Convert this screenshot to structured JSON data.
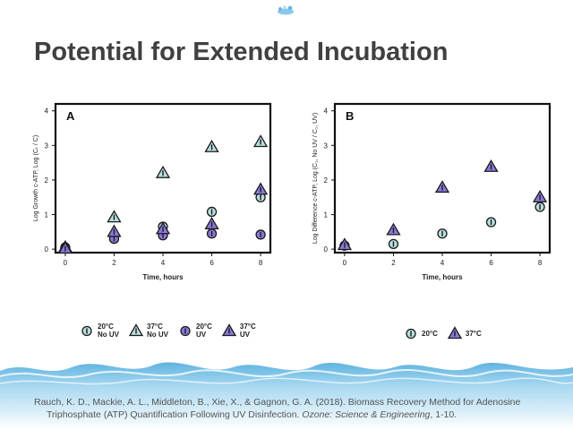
{
  "slide": {
    "title": "Potential for Extended Incubation",
    "citation_line1": "Rauch, K. D., Mackie, A. L., Middleton, B., Xie, X., & Gagnon, G. A. (2018). Biomass Recovery Method for Adenosine",
    "citation_line2_pre": "Triphosphate (ATP) Quantification Following UV Disinfection. ",
    "citation_journal": "Ozone: Science & Engineering",
    "citation_line2_post": ", 1-10."
  },
  "colors": {
    "teal_fill": "#b8dedd",
    "purple_fill": "#8b78d8",
    "stroke": "#1a1a1a",
    "water": "#7fc3e6"
  },
  "chart_data": [
    {
      "type": "scatter",
      "panel_label": "A",
      "xlabel": "Time, hours",
      "ylabel": "Log Growth c-ATP,  Log (Cₜ / C)",
      "xlim": [
        -0.4,
        8.4
      ],
      "ylim": [
        -0.1,
        4.2
      ],
      "xticks": [
        0,
        2,
        4,
        6,
        8
      ],
      "yticks": [
        0,
        1,
        2,
        3,
        4
      ],
      "series": [
        {
          "name": "20°C\nNo UV",
          "marker": "circle",
          "color": "#b8dedd",
          "x": [
            0,
            2,
            4,
            6,
            8
          ],
          "y": [
            0.05,
            0.3,
            0.65,
            1.08,
            1.5
          ]
        },
        {
          "name": "37°C\nNo UV",
          "marker": "triangle",
          "color": "#b8dedd",
          "x": [
            0,
            2,
            4,
            6,
            8
          ],
          "y": [
            0.05,
            0.92,
            2.2,
            2.95,
            3.1
          ]
        },
        {
          "name": "20°C\nUV",
          "marker": "circle",
          "color": "#8b78d8",
          "x": [
            0,
            2,
            4,
            6,
            8
          ],
          "y": [
            0.02,
            0.3,
            0.4,
            0.45,
            0.42
          ]
        },
        {
          "name": "37°C\nUV",
          "marker": "triangle",
          "color": "#8b78d8",
          "x": [
            0,
            2,
            4,
            6,
            8
          ],
          "y": [
            0.02,
            0.5,
            0.58,
            0.72,
            1.72
          ]
        }
      ]
    },
    {
      "type": "scatter",
      "panel_label": "B",
      "xlabel": "Time, hours",
      "ylabel": "Log Difference c-ATP,  Log (C₁, No UV / C₁, UV)",
      "xlim": [
        -0.4,
        8.4
      ],
      "ylim": [
        -0.1,
        4.2
      ],
      "xticks": [
        0,
        2,
        4,
        6,
        8
      ],
      "yticks": [
        0,
        1,
        2,
        3,
        4
      ],
      "series": [
        {
          "name": "20°C",
          "marker": "circle",
          "color": "#b8dedd",
          "x": [
            0,
            2,
            4,
            6,
            8
          ],
          "y": [
            0.1,
            0.15,
            0.45,
            0.78,
            1.22
          ]
        },
        {
          "name": "37°C",
          "marker": "triangle",
          "color": "#8b78d8",
          "x": [
            0,
            2,
            4,
            6,
            8
          ],
          "y": [
            0.12,
            0.55,
            1.78,
            2.38,
            1.5
          ]
        }
      ]
    }
  ]
}
